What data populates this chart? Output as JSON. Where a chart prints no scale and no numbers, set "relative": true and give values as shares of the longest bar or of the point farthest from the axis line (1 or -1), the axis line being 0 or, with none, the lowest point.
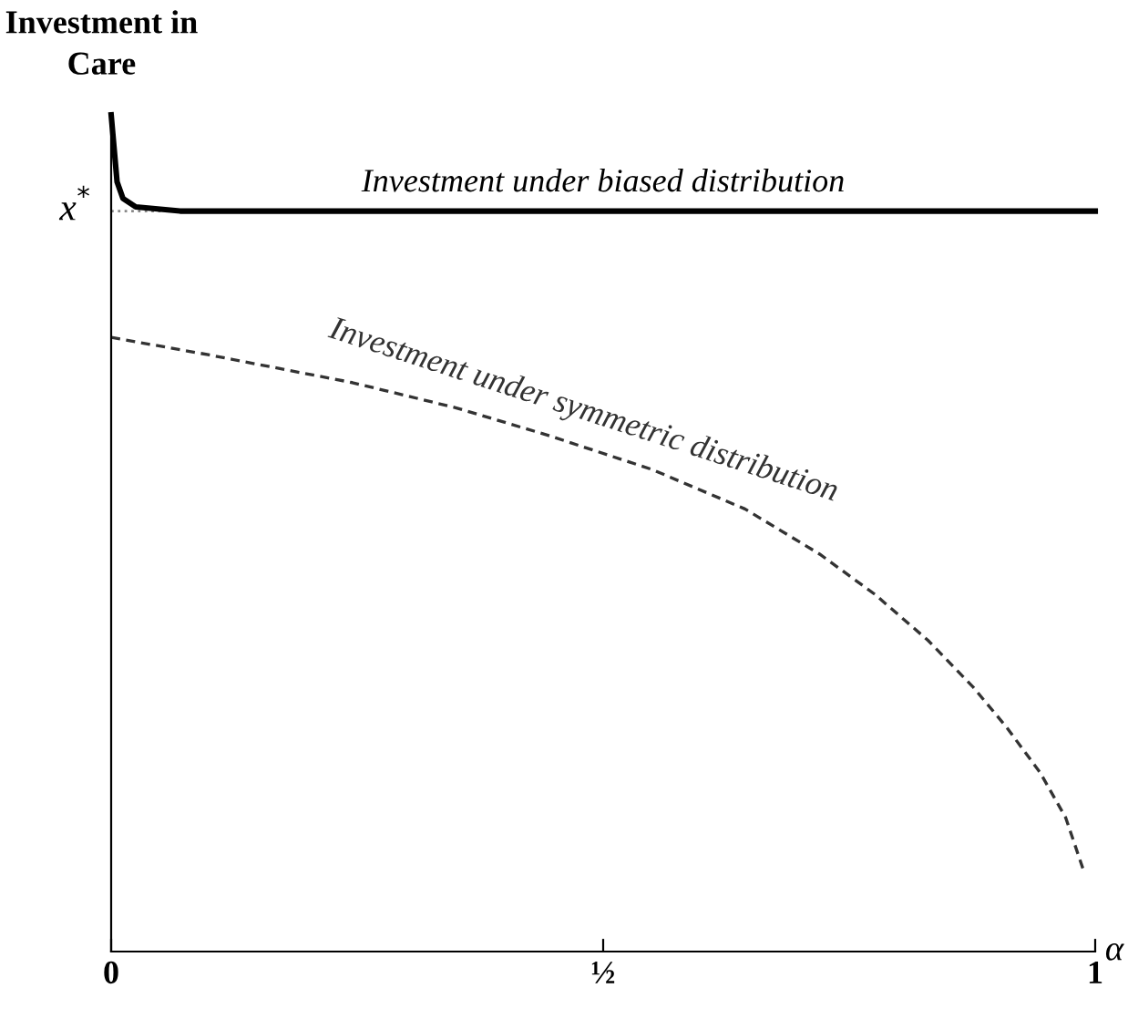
{
  "chart_data": {
    "type": "line",
    "relative": true,
    "ylabel": "Investment in\nCare",
    "xlabel": "α",
    "xlim": [
      0,
      1
    ],
    "xticks": [
      0,
      {
        "value": 0.5,
        "label": "½"
      },
      1
    ],
    "ref_lines": [
      {
        "axis": "y",
        "value": 0.885,
        "label": "x$^{*}$",
        "line_style": "dotted",
        "color": "#888888"
      }
    ],
    "series": [
      {
        "name": "Investment under biased distribution",
        "color": "#000000",
        "line_style": "solid",
        "x": [
          0,
          0.003,
          0.006,
          0.012,
          0.025,
          0.07,
          1
        ],
        "values": [
          1,
          0.96,
          0.92,
          0.9,
          0.89,
          0.885,
          0.885
        ]
      },
      {
        "name": "Investment under symmetric distribution",
        "color": "#333333",
        "line_style": "dashed",
        "x": [
          0,
          0.1,
          0.245,
          0.35,
          0.444,
          0.55,
          0.644,
          0.72,
          0.776,
          0.83,
          0.876,
          0.91,
          0.944,
          0.97,
          0.989
        ],
        "values": [
          0.734,
          0.713,
          0.68,
          0.65,
          0.617,
          0.576,
          0.529,
          0.475,
          0.427,
          0.372,
          0.316,
          0.268,
          0.214,
          0.16,
          0.094
        ]
      }
    ]
  }
}
